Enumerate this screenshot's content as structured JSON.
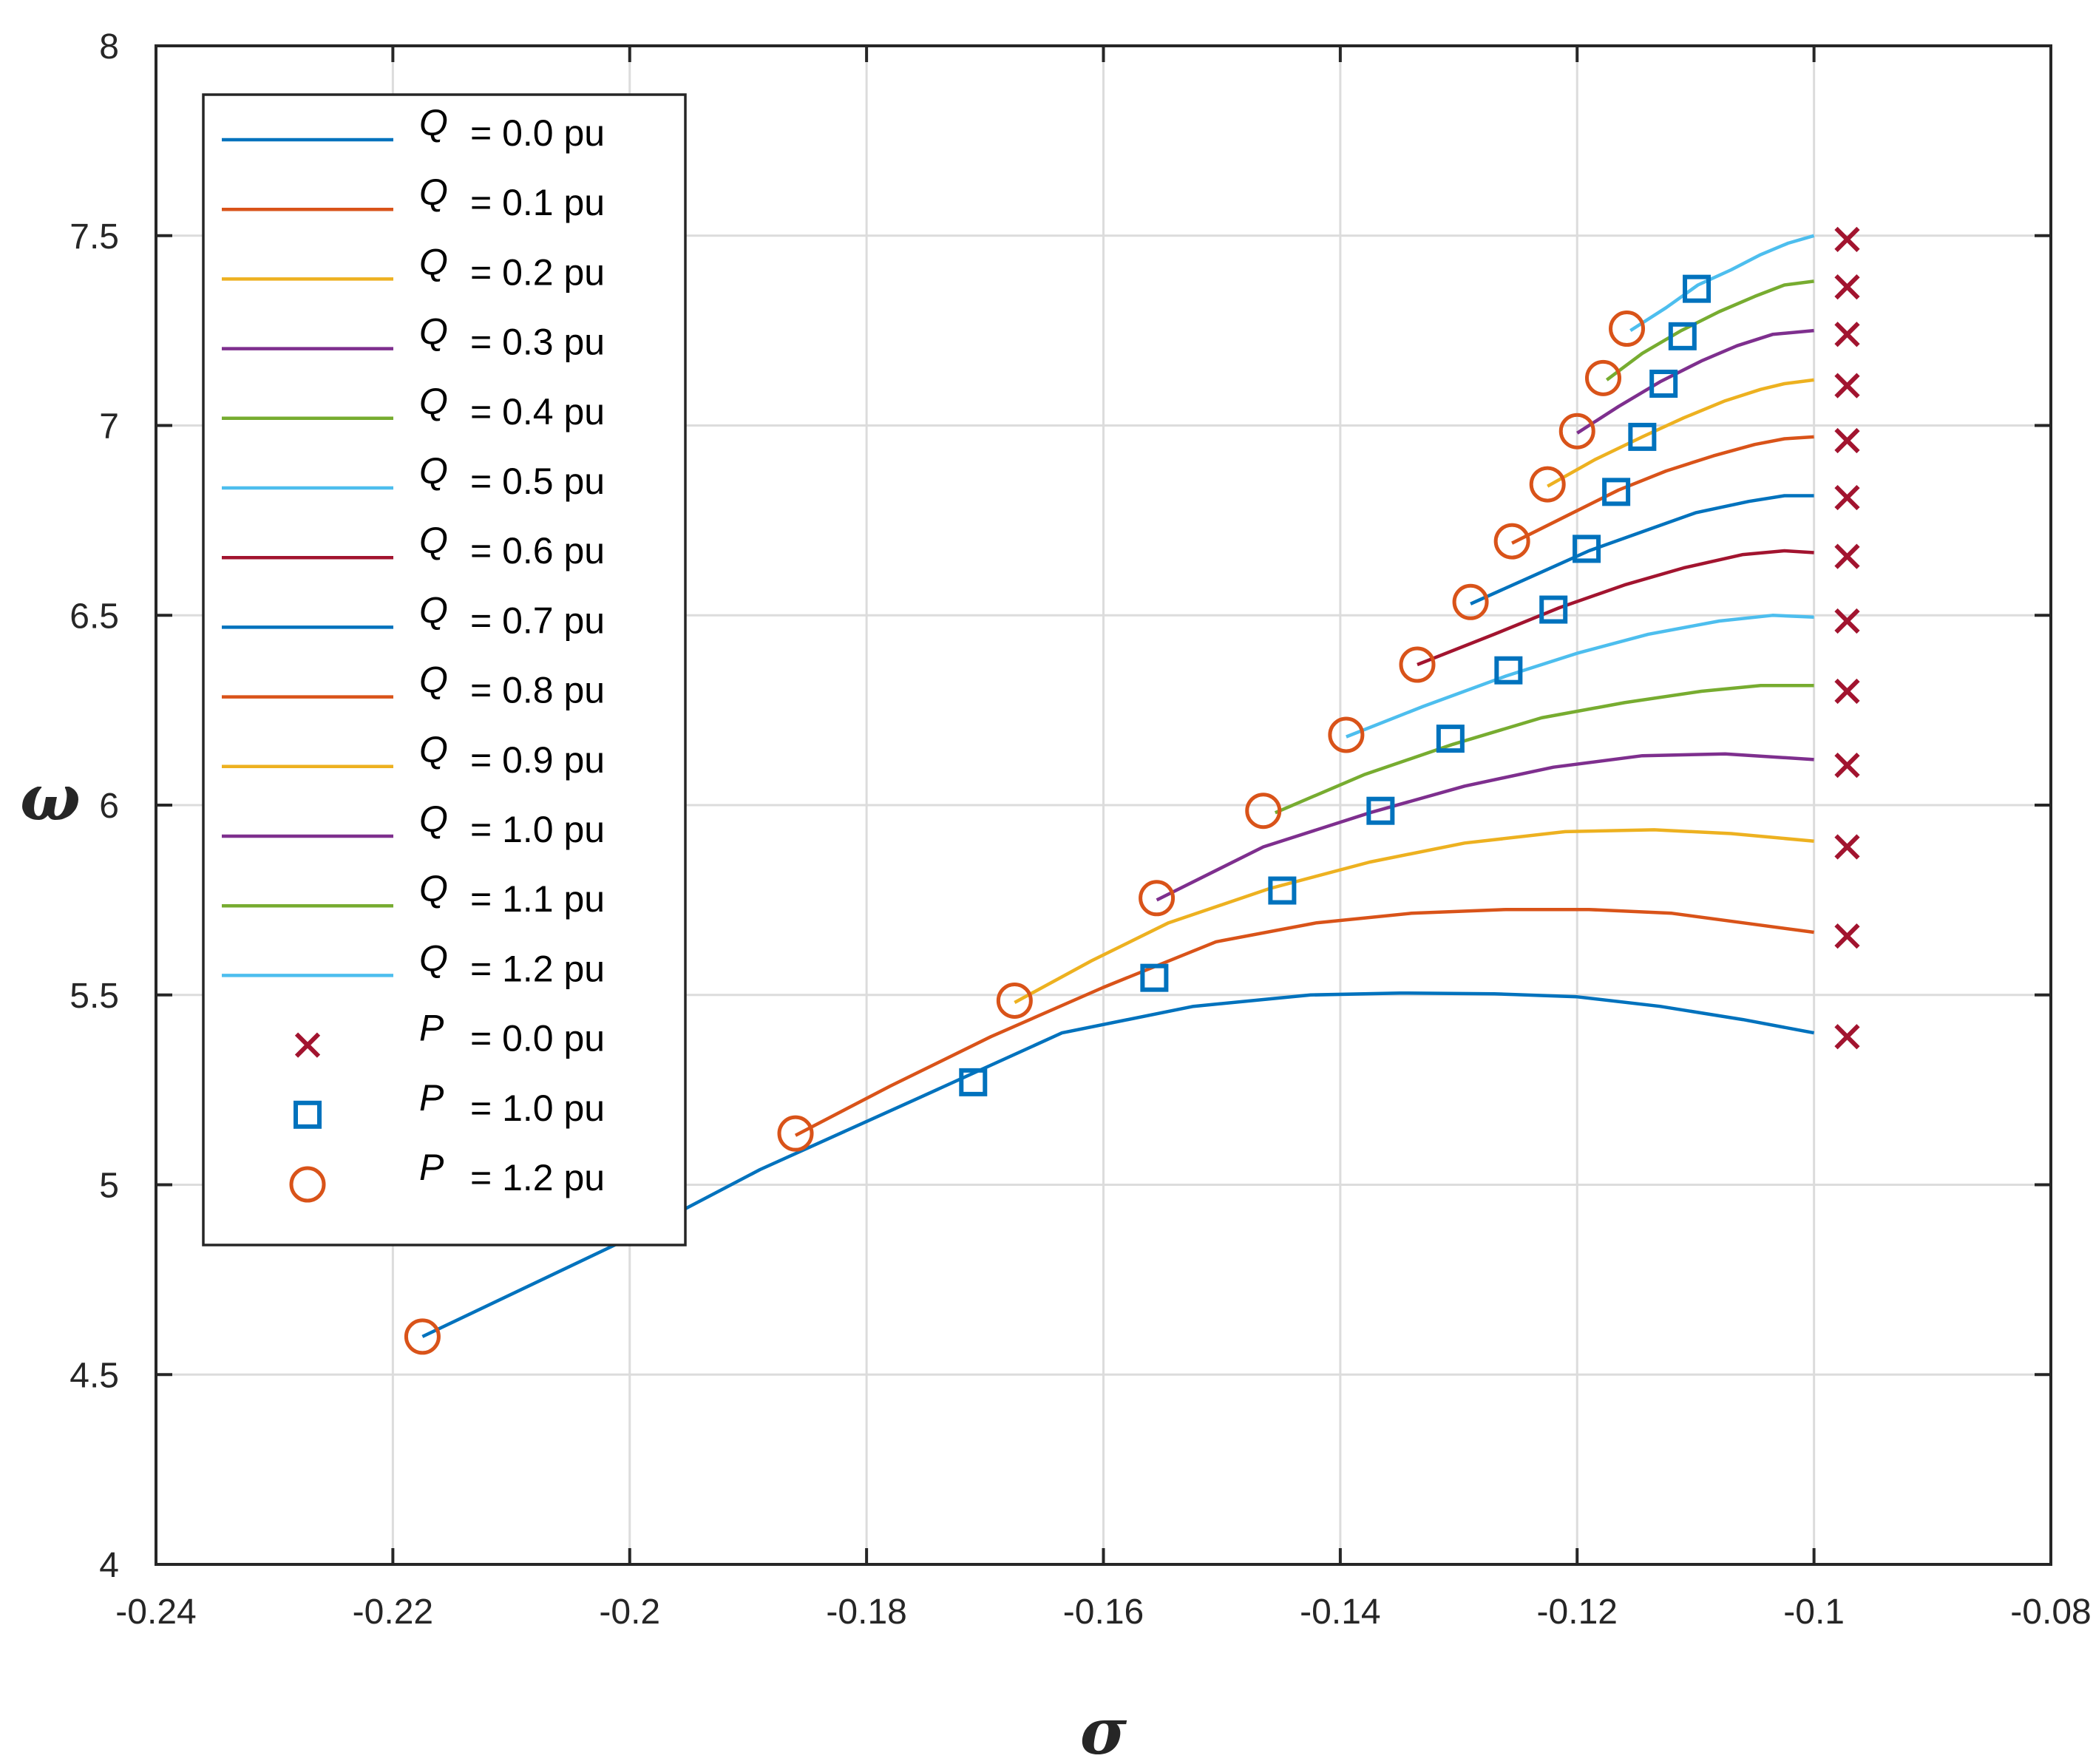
{
  "chart_data": {
    "type": "line",
    "title": "",
    "xlabel": "σ",
    "ylabel": "ω",
    "xlim": [
      -0.24,
      -0.08
    ],
    "ylim": [
      4,
      8
    ],
    "grid": true,
    "legend_position": "top-left",
    "x_ticks": [
      {
        "value": -0.24,
        "label": "-0.24"
      },
      {
        "value": -0.22,
        "label": "-0.22"
      },
      {
        "value": -0.2,
        "label": "-0.2"
      },
      {
        "value": -0.18,
        "label": "-0.18"
      },
      {
        "value": -0.16,
        "label": "-0.16"
      },
      {
        "value": -0.14,
        "label": "-0.14"
      },
      {
        "value": -0.12,
        "label": "-0.12"
      },
      {
        "value": -0.1,
        "label": "-0.1"
      },
      {
        "value": -0.08,
        "label": "-0.08"
      }
    ],
    "y_ticks": [
      {
        "value": 4,
        "label": "4"
      },
      {
        "value": 4.5,
        "label": "4.5"
      },
      {
        "value": 5,
        "label": "5"
      },
      {
        "value": 5.5,
        "label": "5.5"
      },
      {
        "value": 6,
        "label": "6"
      },
      {
        "value": 6.5,
        "label": "6.5"
      },
      {
        "value": 7,
        "label": "7"
      },
      {
        "value": 7.5,
        "label": "7.5"
      },
      {
        "value": 8,
        "label": "8"
      }
    ],
    "series": [
      {
        "name": "Q = 0.0 pu",
        "var": "Q",
        "label": "= 0.0 pu",
        "color": "#0072BD",
        "x": [
          -0.2175,
          -0.2,
          -0.189,
          -0.1755,
          -0.1635,
          -0.1524,
          -0.1425,
          -0.135,
          -0.127,
          -0.12,
          -0.113,
          -0.106,
          -0.1
        ]
      },
      {
        "name": "Q = 0.1 pu",
        "var": "Q",
        "label": "= 0.1 pu",
        "color": "#D95319",
        "x": [
          -0.186,
          -0.178,
          -0.1695,
          -0.16,
          -0.1505,
          -0.142,
          -0.134,
          -0.126,
          -0.119,
          -0.112,
          -0.106,
          -0.1
        ]
      },
      {
        "name": "Q = 0.2 pu",
        "var": "Q",
        "label": "= 0.2 pu",
        "color": "#EDB120",
        "x": [
          -0.1675,
          -0.161,
          -0.1545,
          -0.146,
          -0.1375,
          -0.1295,
          -0.121,
          -0.1135,
          -0.107,
          -0.1
        ]
      },
      {
        "name": "Q = 0.3 pu",
        "var": "Q",
        "label": "= 0.3 pu",
        "color": "#7E2F8E",
        "x": [
          -0.1555,
          -0.1465,
          -0.1375,
          -0.1295,
          -0.122,
          -0.1145,
          -0.1075,
          -0.1
        ]
      },
      {
        "name": "Q = 0.4 pu",
        "var": "Q",
        "label": "= 0.4 pu",
        "color": "#77AC30",
        "x": [
          -0.1455,
          -0.138,
          -0.1305,
          -0.123,
          -0.116,
          -0.1095,
          -0.1045,
          -0.1
        ]
      },
      {
        "name": "Q = 0.5 pu",
        "var": "Q",
        "label": "= 0.5 pu",
        "color": "#4DBEEE",
        "x": [
          -0.1395,
          -0.133,
          -0.126,
          -0.12,
          -0.114,
          -0.108,
          -0.1035,
          -0.1
        ]
      },
      {
        "name": "Q = 0.6 pu",
        "var": "Q",
        "label": "= 0.6 pu",
        "color": "#A2142F",
        "x": [
          -0.1335,
          -0.127,
          -0.1215,
          -0.116,
          -0.111,
          -0.106,
          -0.1025,
          -0.1
        ]
      },
      {
        "name": "Q = 0.7 pu",
        "var": "Q",
        "label": "= 0.7 pu",
        "color": "#0072BD",
        "x": [
          -0.129,
          -0.124,
          -0.119,
          -0.1145,
          -0.11,
          -0.1055,
          -0.1025,
          -0.1
        ]
      },
      {
        "name": "Q = 0.8 pu",
        "var": "Q",
        "label": "= 0.8 pu",
        "color": "#D95319",
        "x": [
          -0.1255,
          -0.121,
          -0.1165,
          -0.1125,
          -0.1085,
          -0.105,
          -0.1025,
          -0.1
        ]
      },
      {
        "name": "Q = 0.9 pu",
        "var": "Q",
        "label": "= 0.9 pu",
        "color": "#EDB120",
        "x": [
          -0.1225,
          -0.1185,
          -0.1145,
          -0.111,
          -0.1075,
          -0.1045,
          -0.1025,
          -0.1
        ]
      },
      {
        "name": "Q = 1.0 pu",
        "var": "Q",
        "label": "= 1.0 pu",
        "color": "#7E2F8E",
        "x": [
          -0.12,
          -0.1165,
          -0.113,
          -0.1095,
          -0.1065,
          -0.1035,
          -0.1
        ]
      },
      {
        "name": "Q = 1.1 pu",
        "var": "Q",
        "label": "= 1.1 pu",
        "color": "#77AC30",
        "x": [
          -0.1175,
          -0.1145,
          -0.1112,
          -0.108,
          -0.105,
          -0.1025,
          -0.1
        ]
      },
      {
        "name": "Q = 1.2 pu",
        "var": "Q",
        "label": "= 1.2 pu",
        "color": "#4DBEEE",
        "x": [
          -0.1155,
          -0.1125,
          -0.1098,
          -0.107,
          -0.1045,
          -0.1022,
          -0.1
        ]
      }
    ],
    "series_y": [
      [
        4.6,
        4.86,
        5.04,
        5.23,
        5.4,
        5.47,
        5.5,
        5.505,
        5.503,
        5.495,
        5.47,
        5.435,
        5.4
      ],
      [
        5.13,
        5.26,
        5.39,
        5.52,
        5.64,
        5.69,
        5.715,
        5.725,
        5.725,
        5.715,
        5.69,
        5.665
      ],
      [
        5.48,
        5.59,
        5.69,
        5.78,
        5.85,
        5.9,
        5.93,
        5.935,
        5.925,
        5.905
      ],
      [
        5.75,
        5.89,
        5.98,
        6.05,
        6.1,
        6.13,
        6.135,
        6.12
      ],
      [
        5.98,
        6.08,
        6.16,
        6.23,
        6.27,
        6.3,
        6.315,
        6.315
      ],
      [
        6.18,
        6.26,
        6.34,
        6.4,
        6.45,
        6.485,
        6.5,
        6.495
      ],
      [
        6.37,
        6.45,
        6.52,
        6.58,
        6.625,
        6.66,
        6.67,
        6.665
      ],
      [
        6.53,
        6.6,
        6.67,
        6.72,
        6.77,
        6.8,
        6.815,
        6.815
      ],
      [
        6.69,
        6.76,
        6.83,
        6.88,
        6.92,
        6.95,
        6.965,
        6.97
      ],
      [
        6.84,
        6.91,
        6.97,
        7.02,
        7.065,
        7.095,
        7.11,
        7.12
      ],
      [
        6.98,
        7.05,
        7.115,
        7.17,
        7.21,
        7.24,
        7.25
      ],
      [
        7.12,
        7.19,
        7.25,
        7.3,
        7.34,
        7.37,
        7.38
      ],
      [
        7.25,
        7.31,
        7.37,
        7.41,
        7.45,
        7.48,
        7.5
      ]
    ],
    "markers": [
      {
        "name": "P = 0.0 pu",
        "var": "P",
        "label": "= 0.0 pu",
        "symbol": "x",
        "color": "#A2142F",
        "x": [
          -0.0972,
          -0.0972,
          -0.0972,
          -0.0972,
          -0.0972,
          -0.0972,
          -0.0972,
          -0.0972,
          -0.0972,
          -0.0972,
          -0.0972,
          -0.0972,
          -0.0972
        ],
        "y": [
          5.39,
          5.655,
          5.89,
          6.105,
          6.3,
          6.485,
          6.655,
          6.81,
          6.96,
          7.105,
          7.24,
          7.365,
          7.49
        ]
      },
      {
        "name": "P = 1.0 pu",
        "var": "P",
        "label": "= 1.0 pu",
        "symbol": "square",
        "color": "#0072BD",
        "x": [
          -0.171,
          -0.1557,
          -0.1449,
          -0.1366,
          -0.1307,
          -0.1258,
          -0.122,
          -0.1192,
          -0.1167,
          -0.1145,
          -0.1127,
          -0.1111,
          -0.1099
        ],
        "y": [
          5.27,
          5.545,
          5.775,
          5.985,
          6.175,
          6.355,
          6.515,
          6.675,
          6.825,
          6.97,
          7.11,
          7.235,
          7.36
        ]
      },
      {
        "name": "P = 1.2 pu",
        "var": "P",
        "label": "= 1.2 pu",
        "symbol": "circle",
        "color": "#D95319",
        "x": [
          -0.2175,
          -0.186,
          -0.1675,
          -0.1555,
          -0.1465,
          -0.1395,
          -0.1335,
          -0.129,
          -0.1255,
          -0.1225,
          -0.12,
          -0.1178,
          -0.1158
        ],
        "y": [
          4.6,
          5.135,
          5.485,
          5.755,
          5.985,
          6.185,
          6.37,
          6.535,
          6.695,
          6.845,
          6.985,
          7.125,
          7.255
        ]
      }
    ]
  }
}
